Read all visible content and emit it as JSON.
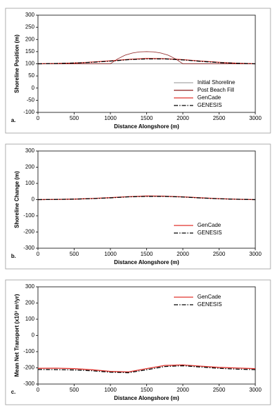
{
  "chart_data": [
    {
      "type": "line",
      "panel_label": "a.",
      "xlabel": "Distance Alongshore (m)",
      "ylabel": "Shoreline Position (m)",
      "xlim": [
        0,
        3000
      ],
      "xticks": [
        0,
        500,
        1000,
        1500,
        2000,
        2500,
        3000
      ],
      "ylim": [
        -100,
        300
      ],
      "yticks": [
        -100,
        -50,
        0,
        50,
        100,
        150,
        200,
        250,
        300
      ],
      "legend": "lower right",
      "series": [
        {
          "name": "Initial Shoreline",
          "color": "#a8a8a8",
          "linestyle": "solid",
          "x": [
            0,
            3000
          ],
          "values": [
            100,
            100
          ]
        },
        {
          "name": "Post Beach Fill",
          "color": "#8b1a1a",
          "linestyle": "solid",
          "x": [
            0,
            500,
            1000,
            1100,
            1200,
            1300,
            1400,
            1500,
            1600,
            1700,
            1800,
            1900,
            2000,
            2500,
            3000
          ],
          "values": [
            100,
            100,
            100,
            120,
            135,
            144,
            149,
            150,
            149,
            144,
            135,
            120,
            100,
            100,
            100
          ]
        },
        {
          "name": "GenCade",
          "color": "#e0302a",
          "linestyle": "solid",
          "x": [
            0,
            250,
            500,
            750,
            1000,
            1250,
            1500,
            1750,
            2000,
            2250,
            2500,
            2750,
            3000
          ],
          "values": [
            100,
            101,
            103,
            107,
            112,
            118,
            122,
            121,
            117,
            111,
            106,
            102,
            100
          ]
        },
        {
          "name": "GENESIS",
          "color": "#000000",
          "linestyle": "dashdot",
          "x": [
            0,
            250,
            500,
            750,
            1000,
            1250,
            1500,
            1750,
            2000,
            2250,
            2500,
            2750,
            3000
          ],
          "values": [
            100,
            101,
            103,
            106,
            111,
            117,
            120,
            120,
            116,
            110,
            105,
            102,
            100
          ]
        }
      ]
    },
    {
      "type": "line",
      "panel_label": "b.",
      "xlabel": "Distance Alongshore (m)",
      "ylabel": "Shoreline Change (m)",
      "xlim": [
        0,
        3000
      ],
      "xticks": [
        0,
        500,
        1000,
        1500,
        2000,
        2500,
        3000
      ],
      "ylim": [
        -300,
        300
      ],
      "yticks": [
        -300,
        -200,
        -100,
        0,
        100,
        200,
        300
      ],
      "legend": "center right",
      "series": [
        {
          "name": "GenCade",
          "color": "#e0302a",
          "linestyle": "solid",
          "x": [
            0,
            250,
            500,
            750,
            1000,
            1250,
            1500,
            1750,
            2000,
            2250,
            2500,
            2750,
            3000
          ],
          "values": [
            0,
            1,
            3,
            7,
            12,
            18,
            22,
            21,
            17,
            11,
            6,
            2,
            0
          ]
        },
        {
          "name": "GENESIS",
          "color": "#000000",
          "linestyle": "dashdot",
          "x": [
            0,
            250,
            500,
            750,
            1000,
            1250,
            1500,
            1750,
            2000,
            2250,
            2500,
            2750,
            3000
          ],
          "values": [
            0,
            1,
            3,
            6,
            11,
            17,
            20,
            20,
            16,
            10,
            5,
            2,
            0
          ]
        }
      ]
    },
    {
      "type": "line",
      "panel_label": "c.",
      "xlabel": "Distance Alongshore (m)",
      "ylabel": "Mean Net Transport (x10³ m³/yr)",
      "xlim": [
        0,
        3000
      ],
      "xticks": [
        0,
        500,
        1000,
        1500,
        2000,
        2500,
        3000
      ],
      "ylim": [
        -300,
        300
      ],
      "yticks": [
        -300,
        -200,
        -100,
        0,
        100,
        200,
        300
      ],
      "legend": "upper right",
      "series": [
        {
          "name": "GenCade",
          "color": "#e0302a",
          "linestyle": "solid",
          "x": [
            0,
            250,
            500,
            750,
            1000,
            1250,
            1500,
            1750,
            2000,
            2250,
            2500,
            2750,
            3000
          ],
          "values": [
            -203,
            -202,
            -205,
            -212,
            -222,
            -225,
            -205,
            -185,
            -182,
            -190,
            -197,
            -201,
            -205
          ]
        },
        {
          "name": "GENESIS",
          "color": "#000000",
          "linestyle": "dashdot",
          "x": [
            0,
            250,
            500,
            750,
            1000,
            1250,
            1500,
            1750,
            2000,
            2250,
            2500,
            2750,
            3000
          ],
          "values": [
            -210,
            -211,
            -213,
            -218,
            -227,
            -230,
            -212,
            -192,
            -187,
            -195,
            -203,
            -208,
            -211
          ]
        }
      ]
    }
  ]
}
